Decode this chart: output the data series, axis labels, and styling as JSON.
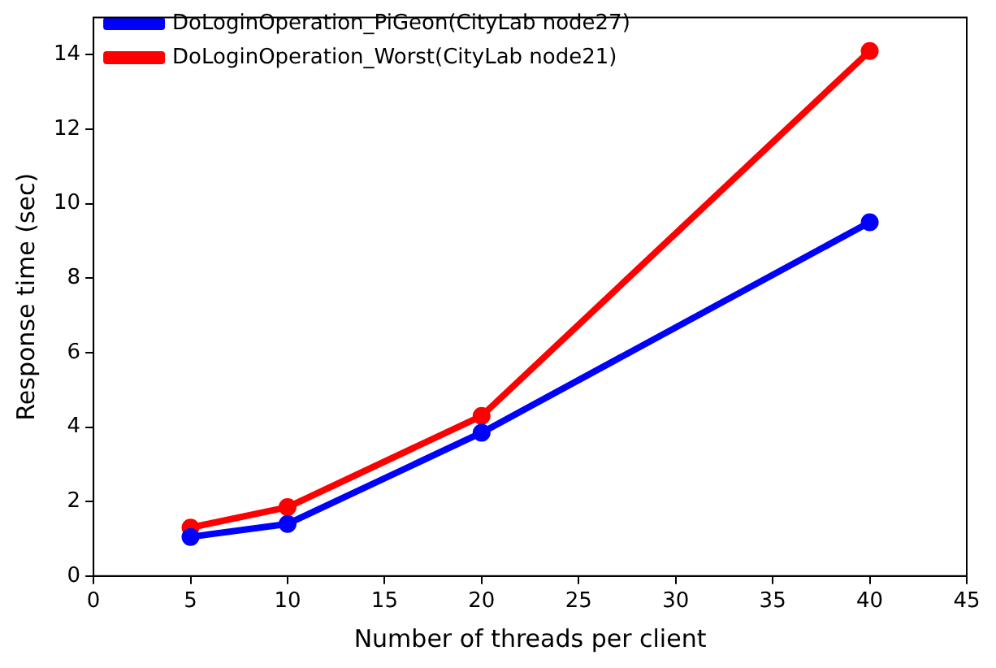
{
  "chart_data": {
    "type": "line",
    "xlabel": "Number of threads per client",
    "ylabel": "Response time (sec)",
    "x": [
      5,
      10,
      20,
      40
    ],
    "series": [
      {
        "name": "DoLoginOperation_PiGeon(CityLab node27)",
        "color": "#0000ff",
        "values": [
          1.05,
          1.4,
          3.85,
          9.5
        ]
      },
      {
        "name": "DoLoginOperation_Worst(CityLab node21)",
        "color": "#ff0000",
        "values": [
          1.3,
          1.85,
          4.3,
          14.1
        ]
      }
    ],
    "xlim": [
      0,
      45
    ],
    "xticks": [
      0,
      5,
      10,
      15,
      20,
      25,
      30,
      35,
      40,
      45
    ],
    "ylim": [
      0,
      15
    ],
    "yticks": [
      0,
      2,
      4,
      6,
      8,
      10,
      12,
      14
    ],
    "grid": false,
    "legend": "top left",
    "marker": "circle",
    "line_style": "solid"
  }
}
